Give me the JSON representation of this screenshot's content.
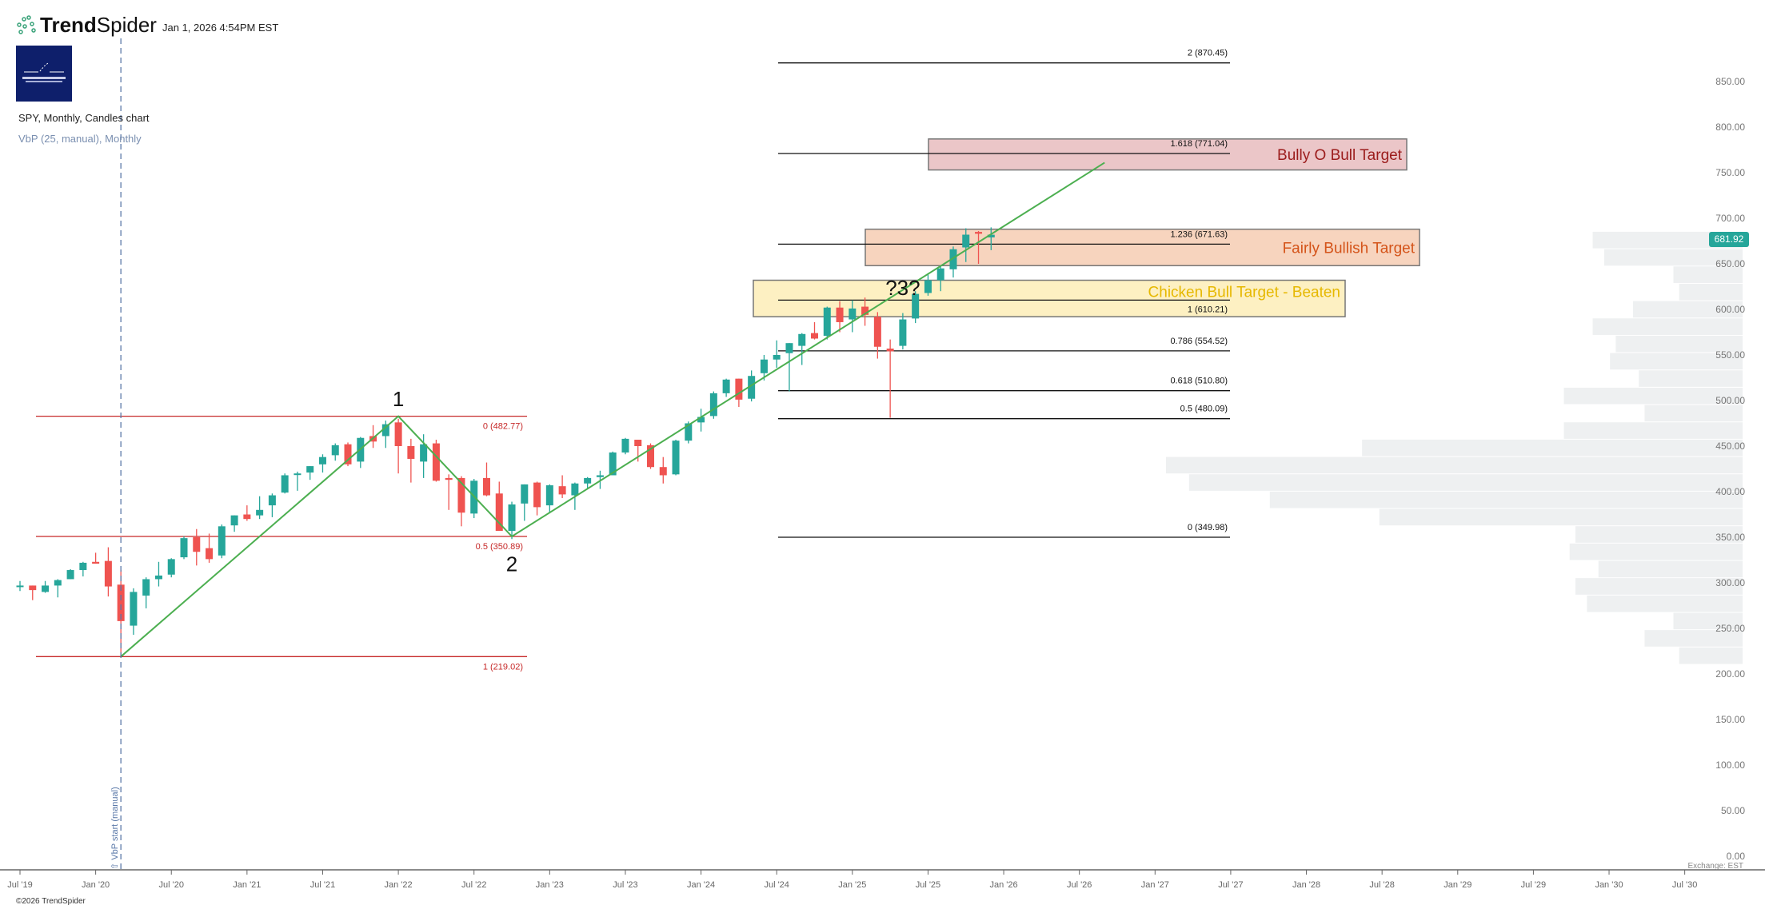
{
  "header": {
    "brand_bold": "Trend",
    "brand_light": "Spider",
    "timestamp": "Jan 1, 2026 4:54PM EST",
    "chart_title": "SPY, Monthly, Candles chart",
    "indicator": "VbP (25, manual), Monthly",
    "copyright": "©2026 TrendSpider",
    "exchange": "Exchange: EST"
  },
  "current_price": "681.92",
  "colors": {
    "up": "#26a69a",
    "down": "#ef5350",
    "trend": "#4caf50",
    "fib_left": "#c62828",
    "fib_right": "#111111",
    "vbp": "#eef0f1"
  },
  "chart_data": {
    "type": "candlestick",
    "symbol": "SPY",
    "interval": "Monthly",
    "ylim": [
      0,
      850
    ],
    "y_ticks": [
      "0.00",
      "50.00",
      "100.00",
      "150.00",
      "200.00",
      "250.00",
      "300.00",
      "350.00",
      "400.00",
      "450.00",
      "500.00",
      "550.00",
      "600.00",
      "650.00",
      "700.00",
      "750.00",
      "800.00",
      "850.00"
    ],
    "x_ticks": [
      "Jul '19",
      "Jan '20",
      "Jul '20",
      "Jan '21",
      "Jul '21",
      "Jan '22",
      "Jul '22",
      "Jan '23",
      "Jul '23",
      "Jan '24",
      "Jul '24",
      "Jan '25",
      "Jul '25",
      "Jan '26",
      "Jul '26",
      "Jan '27",
      "Jul '27",
      "Jan '28",
      "Jul '28",
      "Jan '29",
      "Jul '29",
      "Jan '30",
      "Jul '30"
    ],
    "candles": [
      [
        "2019-07",
        296,
        302,
        291,
        297
      ],
      [
        "2019-08",
        297,
        297,
        281,
        292
      ],
      [
        "2019-09",
        290,
        302,
        289,
        297
      ],
      [
        "2019-10",
        297,
        304,
        284,
        303
      ],
      [
        "2019-11",
        304,
        315,
        304,
        314
      ],
      [
        "2019-12",
        314,
        323,
        307,
        322
      ],
      [
        "2020-01",
        323,
        333,
        321,
        321
      ],
      [
        "2020-02",
        324,
        339,
        285,
        296
      ],
      [
        "2020-03",
        298,
        314,
        218,
        258
      ],
      [
        "2020-04",
        253,
        294,
        243,
        290
      ],
      [
        "2020-05",
        286,
        306,
        272,
        304
      ],
      [
        "2020-06",
        304,
        323,
        296,
        308
      ],
      [
        "2020-07",
        309,
        327,
        306,
        326
      ],
      [
        "2020-08",
        328,
        351,
        326,
        349
      ],
      [
        "2020-09",
        350,
        359,
        319,
        334
      ],
      [
        "2020-10",
        338,
        354,
        322,
        326
      ],
      [
        "2020-11",
        330,
        364,
        327,
        362
      ],
      [
        "2020-12",
        363,
        374,
        356,
        374
      ],
      [
        "2021-01",
        375,
        385,
        368,
        370
      ],
      [
        "2021-02",
        374,
        395,
        370,
        380
      ],
      [
        "2021-03",
        385,
        398,
        372,
        396
      ],
      [
        "2021-04",
        399,
        420,
        398,
        418
      ],
      [
        "2021-05",
        419,
        422,
        401,
        420
      ],
      [
        "2021-06",
        421,
        428,
        413,
        428
      ],
      [
        "2021-07",
        430,
        441,
        421,
        438
      ],
      [
        "2021-08",
        440,
        453,
        434,
        451
      ],
      [
        "2021-09",
        452,
        454,
        428,
        430
      ],
      [
        "2021-10",
        433,
        460,
        426,
        459
      ],
      [
        "2021-11",
        461,
        473,
        448,
        455
      ],
      [
        "2021-12",
        461,
        478,
        448,
        474
      ],
      [
        "2022-01",
        476,
        480,
        420,
        450
      ],
      [
        "2022-02",
        450,
        458,
        410,
        436
      ],
      [
        "2022-03",
        433,
        463,
        415,
        452
      ],
      [
        "2022-04",
        453,
        457,
        411,
        412
      ],
      [
        "2022-05",
        415,
        419,
        380,
        413
      ],
      [
        "2022-06",
        415,
        417,
        362,
        377
      ],
      [
        "2022-07",
        376,
        414,
        371,
        412
      ],
      [
        "2022-08",
        415,
        432,
        395,
        396
      ],
      [
        "2022-09",
        398,
        411,
        357,
        357
      ],
      [
        "2022-10",
        357,
        389,
        348,
        386
      ],
      [
        "2022-11",
        387,
        408,
        368,
        408
      ],
      [
        "2022-12",
        410,
        411,
        374,
        383
      ],
      [
        "2023-01",
        385,
        408,
        377,
        407
      ],
      [
        "2023-02",
        406,
        418,
        393,
        397
      ],
      [
        "2023-03",
        396,
        410,
        380,
        409
      ],
      [
        "2023-04",
        409,
        416,
        403,
        415
      ],
      [
        "2023-05",
        416,
        423,
        403,
        418
      ],
      [
        "2023-06",
        418,
        444,
        418,
        443
      ],
      [
        "2023-07",
        443,
        459,
        441,
        458
      ],
      [
        "2023-08",
        457,
        457,
        433,
        450
      ],
      [
        "2023-09",
        451,
        453,
        425,
        427
      ],
      [
        "2023-10",
        427,
        438,
        409,
        418
      ],
      [
        "2023-11",
        419,
        457,
        418,
        456
      ],
      [
        "2023-12",
        456,
        477,
        453,
        475
      ],
      [
        "2024-01",
        476,
        491,
        466,
        482
      ],
      [
        "2024-02",
        483,
        510,
        480,
        508
      ],
      [
        "2024-03",
        508,
        524,
        504,
        523
      ],
      [
        "2024-04",
        524,
        524,
        493,
        501
      ],
      [
        "2024-05",
        502,
        533,
        499,
        527
      ],
      [
        "2024-06",
        530,
        550,
        522,
        545
      ],
      [
        "2024-07",
        545,
        566,
        536,
        550
      ],
      [
        "2024-08",
        552,
        563,
        510,
        563
      ],
      [
        "2024-09",
        560,
        574,
        539,
        573
      ],
      [
        "2024-10",
        574,
        586,
        567,
        568
      ],
      [
        "2024-11",
        571,
        603,
        567,
        602
      ],
      [
        "2024-12",
        602,
        609,
        575,
        586
      ],
      [
        "2025-01",
        589,
        610,
        575,
        601
      ],
      [
        "2025-02",
        603,
        613,
        582,
        594
      ],
      [
        "2025-03",
        592,
        597,
        546,
        559
      ],
      [
        "2025-04",
        557,
        567,
        481,
        554
      ],
      [
        "2025-05",
        560,
        596,
        556,
        589
      ],
      [
        "2025-06",
        590,
        620,
        585,
        617
      ],
      [
        "2025-07",
        618,
        639,
        615,
        632
      ],
      [
        "2025-08",
        632,
        647,
        620,
        645
      ],
      [
        "2025-09",
        644,
        669,
        635,
        666
      ],
      [
        "2025-10",
        668,
        689,
        652,
        682
      ],
      [
        "2025-11",
        685,
        686,
        650,
        683
      ],
      [
        "2025-12",
        679,
        690,
        665,
        681.92
      ]
    ],
    "fib_left": {
      "levels": [
        {
          "label": "0 (482.77)",
          "price": 482.77
        },
        {
          "label": "0.5 (350.89)",
          "price": 350.89
        },
        {
          "label": "1 (219.02)",
          "price": 219.02
        }
      ]
    },
    "fib_right": {
      "levels": [
        {
          "label": "2 (870.45)",
          "price": 870.45
        },
        {
          "label": "1.618 (771.04)",
          "price": 771.04
        },
        {
          "label": "1.236 (671.63)",
          "price": 671.63
        },
        {
          "label": "1 (610.21)",
          "price": 610.21
        },
        {
          "label": "0.786 (554.52)",
          "price": 554.52
        },
        {
          "label": "0.618 (510.80)",
          "price": 510.8
        },
        {
          "label": "0.5 (480.09)",
          "price": 480.09
        },
        {
          "label": "0 (349.98)",
          "price": 349.98
        }
      ]
    },
    "zones": [
      {
        "label": "Bully O Bull Target",
        "top": 787,
        "bottom": 753,
        "fill": "#ebc6c8",
        "text": "#9b1c1c"
      },
      {
        "label": "Fairly Bullish Target",
        "top": 688,
        "bottom": 648,
        "fill": "#f7d4be",
        "text": "#d4541a"
      },
      {
        "label": "Chicken Bull Target - Beaten",
        "top": 632,
        "bottom": 592,
        "fill": "#fdf0c2",
        "text": "#e6b800"
      }
    ],
    "trend_path": [
      [
        "2020-03",
        219.02
      ],
      [
        "2022-01",
        482.77
      ],
      [
        "2022-10",
        350.89
      ],
      [
        "2026-09",
        761
      ]
    ],
    "wave_labels": [
      {
        "label": "1",
        "date": "2022-01",
        "price": 494
      },
      {
        "label": "2",
        "date": "2022-10",
        "price": 325
      },
      {
        "label": "?3?",
        "date": "2025-05",
        "price": 616
      }
    ],
    "vbp_start": {
      "label": "VbP start (manual)",
      "date": "2020-03"
    },
    "vbp": {
      "bins": 25,
      "range": [
        211,
        686
      ],
      "relative_volume_top_to_bottom": [
        26,
        24,
        12,
        11,
        19,
        26,
        22,
        23,
        18,
        31,
        17,
        31,
        66,
        100,
        96,
        82,
        63,
        29,
        30,
        25,
        29,
        27,
        12,
        17,
        11
      ]
    }
  }
}
